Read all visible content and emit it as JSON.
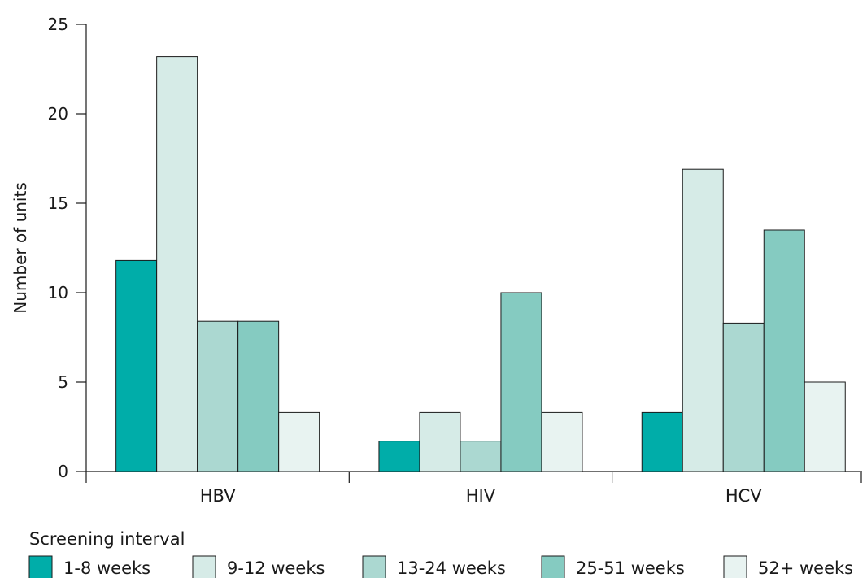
{
  "chart_data": {
    "type": "bar",
    "categories": [
      "HBV",
      "HIV",
      "HCV"
    ],
    "ylabel": "Number of units",
    "xlabel": "",
    "ylim": [
      0,
      25
    ],
    "yticks": [
      0,
      5,
      10,
      15,
      20,
      25
    ],
    "grid": false,
    "legend_title": "Screening interval",
    "legend_position": "bottom",
    "series": [
      {
        "name": "1-8 weeks",
        "color": "#00ada9",
        "values": [
          11.8,
          1.7,
          3.3
        ]
      },
      {
        "name": "9-12 weeks",
        "color": "#d6ebe7",
        "values": [
          23.2,
          3.3,
          16.9
        ]
      },
      {
        "name": "13-24 weeks",
        "color": "#abd8d1",
        "values": [
          8.4,
          1.7,
          8.3
        ]
      },
      {
        "name": "25-51 weeks",
        "color": "#85cbc1",
        "values": [
          8.4,
          10.0,
          13.5
        ]
      },
      {
        "name": "52+ weeks",
        "color": "#e8f3f1",
        "values": [
          3.3,
          3.3,
          5.0
        ]
      }
    ]
  }
}
